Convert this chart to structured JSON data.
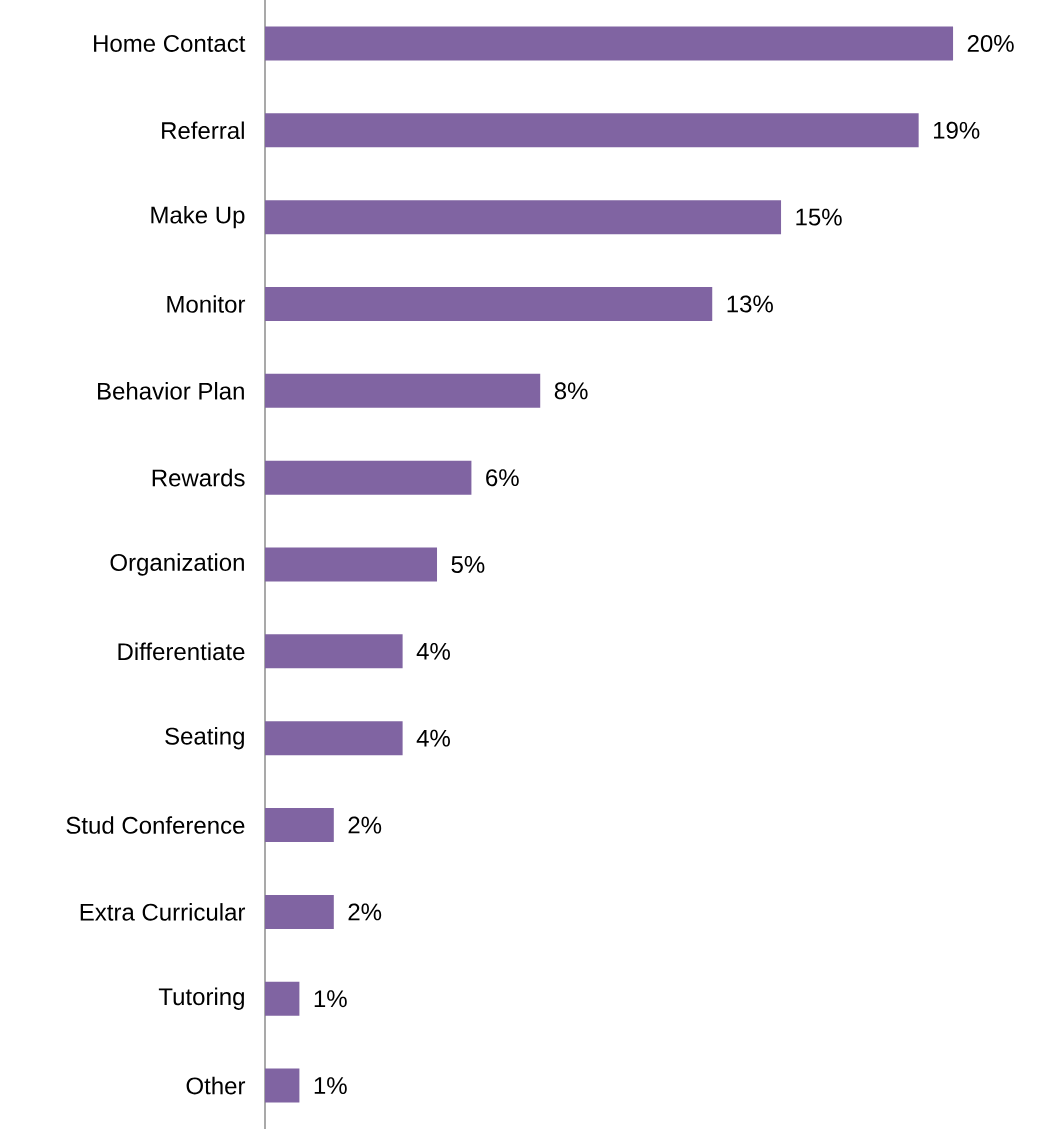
{
  "chart_data": {
    "type": "bar",
    "orientation": "horizontal",
    "categories": [
      "Home Contact",
      "Referral",
      "Make Up",
      "Monitor",
      "Behavior Plan",
      "Rewards",
      "Organization",
      "Differentiate",
      "Seating",
      "Stud Conference",
      "Extra Curricular",
      "Tutoring",
      "Other"
    ],
    "values": [
      20,
      19,
      15,
      13,
      8,
      6,
      5,
      4,
      4,
      2,
      2,
      1,
      1
    ],
    "value_labels": [
      "20%",
      "19%",
      "15%",
      "13%",
      "8%",
      "6%",
      "5%",
      "4%",
      "4%",
      "2%",
      "2%",
      "1%",
      "1%"
    ],
    "color": "#8064a2"
  }
}
